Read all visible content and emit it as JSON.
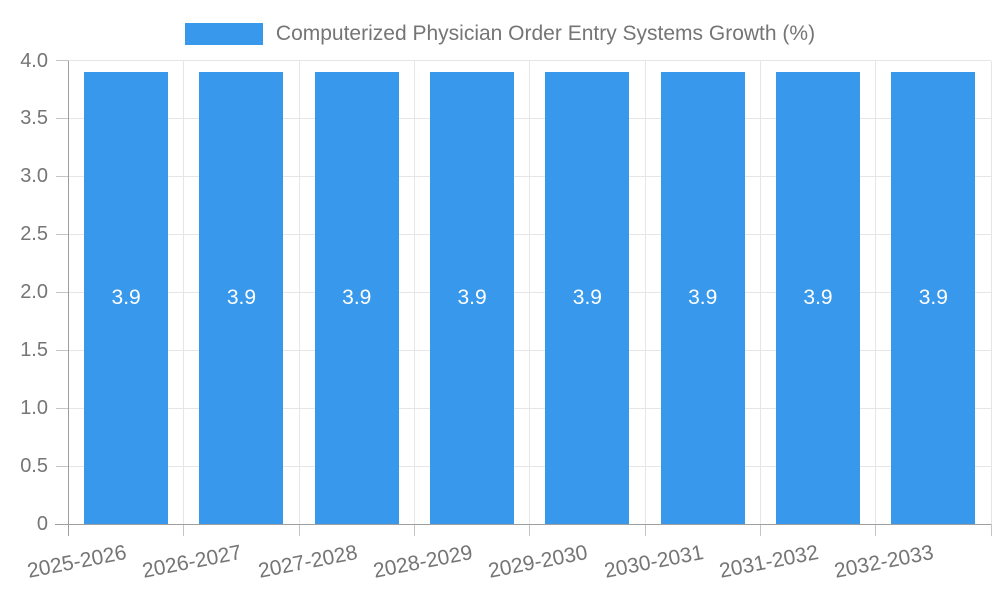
{
  "chart_data": {
    "type": "bar",
    "title": "Computerized Physician Order Entry Systems Growth (%)",
    "categories": [
      "2025-2026",
      "2026-2027",
      "2027-2028",
      "2028-2029",
      "2029-2030",
      "2030-2031",
      "2031-2032",
      "2032-2033"
    ],
    "values": [
      3.9,
      3.9,
      3.9,
      3.9,
      3.9,
      3.9,
      3.9,
      3.9
    ],
    "value_label_format": "one-decimal",
    "xlabel": "",
    "ylabel": "",
    "ylim": [
      0,
      4
    ],
    "yticks": [
      0,
      0.5,
      1.0,
      1.5,
      2.0,
      2.5,
      3.0,
      3.5,
      4.0
    ],
    "ytick_labels": [
      "0",
      "0.5",
      "1.0",
      "1.5",
      "2.0",
      "2.5",
      "3.0",
      "3.5",
      "4.0"
    ],
    "grid": true,
    "legend_position": "top",
    "x_label_rotation_deg": -11,
    "colors": {
      "bar": "#3898ec",
      "grid": "#e6e6e6",
      "axis": "#9e9e9e",
      "tick": "#c4c4c4",
      "text": "#757575",
      "value_label": "#ffffff",
      "background": "#ffffff"
    }
  }
}
